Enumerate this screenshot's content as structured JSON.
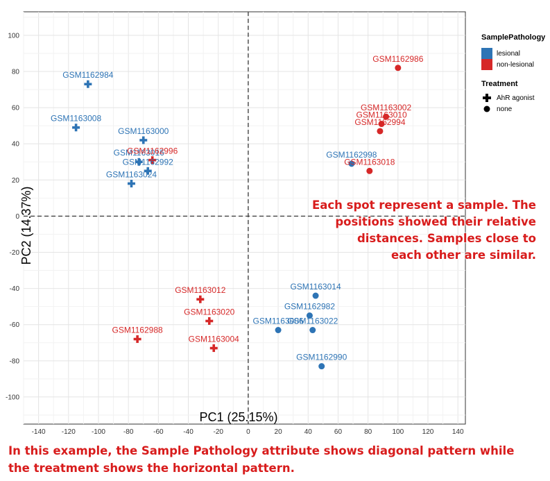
{
  "chart_data": {
    "type": "scatter",
    "xlabel": "PC1 (25.15%)",
    "ylabel": "PC2 (14.37%)",
    "xlim": [
      -150,
      145
    ],
    "ylim": [
      -115,
      113
    ],
    "xticks": [
      -140,
      -120,
      -100,
      -80,
      -60,
      -40,
      -20,
      0,
      20,
      40,
      60,
      80,
      100,
      120,
      140
    ],
    "yticks": [
      -100,
      -80,
      -60,
      -40,
      -20,
      0,
      20,
      40,
      60,
      80,
      100
    ],
    "grid": true,
    "reference_lines": {
      "x": 0,
      "y": 0,
      "style": "dashed"
    },
    "colors": {
      "lesional": "#2e74b5",
      "non-lesional": "#d62828"
    },
    "legend": [
      {
        "title": "SamplePathology",
        "items": [
          {
            "label": "lesional",
            "color": "#2e74b5"
          },
          {
            "label": "non-lesional",
            "color": "#d62828"
          }
        ]
      },
      {
        "title": "Treatment",
        "items": [
          {
            "label": "AhR agonist",
            "shape": "plus"
          },
          {
            "label": "none",
            "shape": "circle"
          }
        ]
      }
    ],
    "legend_position": "right",
    "points": [
      {
        "label": "GSM1162984",
        "x": -107,
        "y": 73,
        "pathology": "lesional",
        "treatment": "AhR agonist"
      },
      {
        "label": "GSM1163008",
        "x": -115,
        "y": 49,
        "pathology": "lesional",
        "treatment": "AhR agonist"
      },
      {
        "label": "GSM1163000",
        "x": -70,
        "y": 42,
        "pathology": "lesional",
        "treatment": "AhR agonist"
      },
      {
        "label": "GSM1163016",
        "x": -73,
        "y": 30,
        "pathology": "lesional",
        "treatment": "AhR agonist"
      },
      {
        "label": "GSM1162992",
        "x": -67,
        "y": 25,
        "pathology": "lesional",
        "treatment": "AhR agonist"
      },
      {
        "label": "GSM1163024",
        "x": -78,
        "y": 18,
        "pathology": "lesional",
        "treatment": "AhR agonist"
      },
      {
        "label": "GSM1162996",
        "x": -64,
        "y": 31,
        "pathology": "non-lesional",
        "treatment": "AhR agonist"
      },
      {
        "label": "GSM1162986",
        "x": 100,
        "y": 82,
        "pathology": "non-lesional",
        "treatment": "none"
      },
      {
        "label": "GSM1163002",
        "x": 92,
        "y": 55,
        "pathology": "non-lesional",
        "treatment": "none"
      },
      {
        "label": "GSM1163010",
        "x": 89,
        "y": 51,
        "pathology": "non-lesional",
        "treatment": "none"
      },
      {
        "label": "GSM1162994",
        "x": 88,
        "y": 47,
        "pathology": "non-lesional",
        "treatment": "none"
      },
      {
        "label": "GSM1163018",
        "x": 81,
        "y": 25,
        "pathology": "non-lesional",
        "treatment": "none"
      },
      {
        "label": "GSM1162998",
        "x": 69,
        "y": 29,
        "pathology": "lesional",
        "treatment": "none"
      },
      {
        "label": "GSM1163012",
        "x": -32,
        "y": -46,
        "pathology": "non-lesional",
        "treatment": "AhR agonist"
      },
      {
        "label": "GSM1163020",
        "x": -26,
        "y": -58,
        "pathology": "non-lesional",
        "treatment": "AhR agonist"
      },
      {
        "label": "GSM1162988",
        "x": -74,
        "y": -68,
        "pathology": "non-lesional",
        "treatment": "AhR agonist"
      },
      {
        "label": "GSM1163004",
        "x": -23,
        "y": -73,
        "pathology": "non-lesional",
        "treatment": "AhR agonist"
      },
      {
        "label": "GSM1163014",
        "x": 45,
        "y": -44,
        "pathology": "lesional",
        "treatment": "none"
      },
      {
        "label": "GSM1162982",
        "x": 41,
        "y": -55,
        "pathology": "lesional",
        "treatment": "none"
      },
      {
        "label": "GSM1163006",
        "x": 20,
        "y": -63,
        "pathology": "lesional",
        "treatment": "none"
      },
      {
        "label": "GSM1163022",
        "x": 43,
        "y": -63,
        "pathology": "lesional",
        "treatment": "none"
      },
      {
        "label": "GSM1162990",
        "x": 49,
        "y": -83,
        "pathology": "lesional",
        "treatment": "none"
      }
    ]
  },
  "annotations": {
    "right_lines": [
      "Each spot represent a sample. The",
      "positions showed their relative",
      "distances. Samples close to",
      "each other are similar."
    ],
    "bottom_lines": [
      "In this example, the Sample Pathology attribute shows diagonal pattern while",
      "the treatment shows the horizontal pattern."
    ]
  }
}
